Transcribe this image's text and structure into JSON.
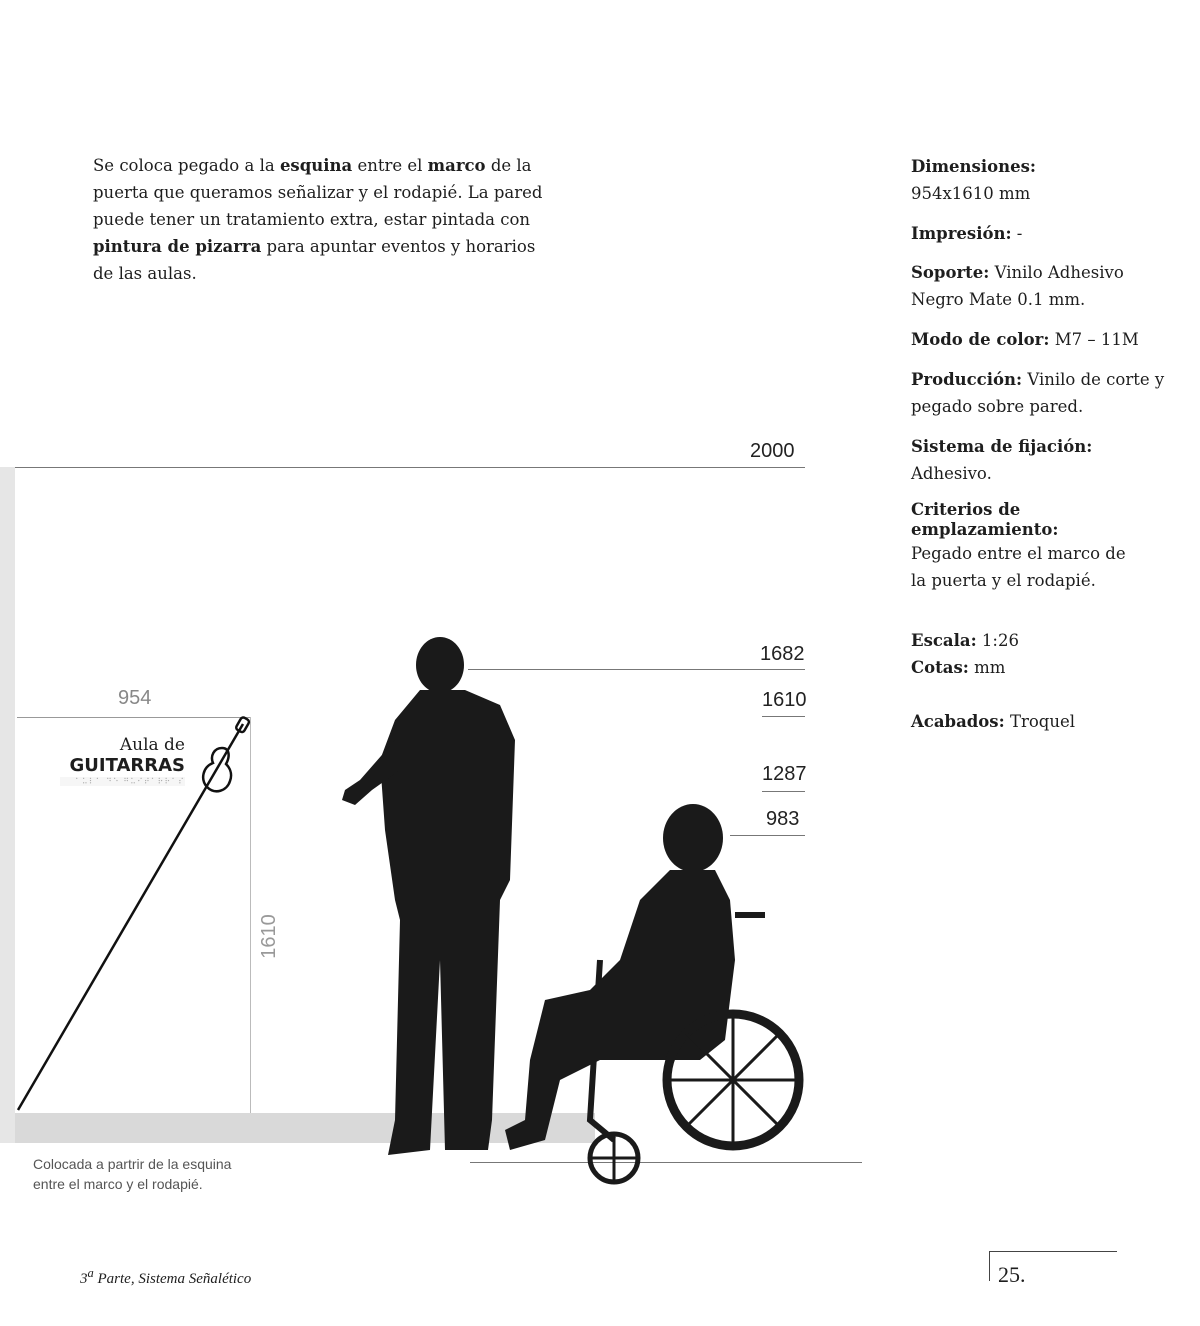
{
  "intro": {
    "parts": [
      {
        "t": "Se coloca pegado a la ",
        "b": false
      },
      {
        "t": "esquina",
        "b": true
      },
      {
        "t": " entre el ",
        "b": false
      },
      {
        "t": "marco",
        "b": true
      },
      {
        "t": " de la puerta que queramos señalizar y el rodapié. La pared puede tener un tratamiento extra, estar pintada con ",
        "b": false
      },
      {
        "t": "pintura de pizarra",
        "b": true
      },
      {
        "t": " para apuntar eventos y horarios de las aulas.",
        "b": false
      }
    ]
  },
  "specs": [
    {
      "label": "Dimensiones:",
      "value": "954x1610 mm"
    },
    {
      "label": "Impresión:",
      "value": " -"
    },
    {
      "label": "Soporte:",
      "value": " Vinilo Adhesivo Negro Mate 0.1 mm."
    },
    {
      "label": "Modo de color:",
      "value": " M7 – 11M"
    },
    {
      "label": "Producción:",
      "value": " Vinilo de corte y pegado sobre pared."
    },
    {
      "label": "Sistema de fijación:",
      "value": "Adhesivo."
    },
    {
      "label": "Criterios de emplazamiento:",
      "value": "Pegado entre el marco de la puerta y el rodapié."
    },
    {
      "label": "Escala:",
      "value": " 1:26"
    },
    {
      "label": "Cotas:",
      "value": " mm"
    },
    {
      "label": "Acabados:",
      "value": " Troquel"
    }
  ],
  "dimensions": {
    "d2000": "2000",
    "d1682": "1682",
    "d1610": "1610",
    "d1287": "1287",
    "d983": "983",
    "sign_width": "954",
    "sign_height": "1610"
  },
  "sign": {
    "line1": "Aula de",
    "line2": "GUITARRAS",
    "braille": "⠁⠥⠇⠁ ⠙⠑ ⠛⠥⠊⠞⠁⠗⠗⠁⠎"
  },
  "caption": {
    "line1": "Colocada a partrir de la esquina",
    "line2": "entre el marco y el rodapié."
  },
  "footer": {
    "part_num": "3",
    "part_sup": "a",
    "part_text": " Parte, Sistema Señalético",
    "page": "25."
  }
}
